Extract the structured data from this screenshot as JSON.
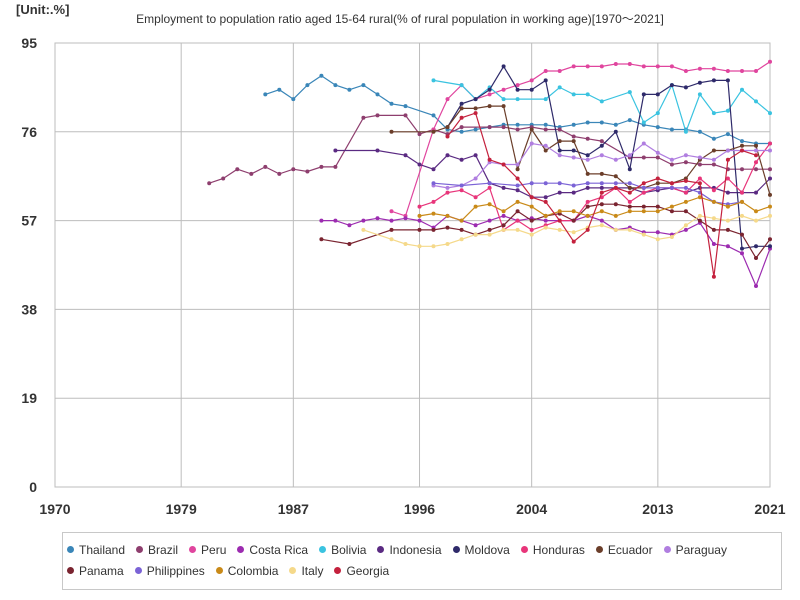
{
  "header": {
    "unit": "[Unit:.%]",
    "title": "Employment to population ratio aged 15-64 rural(% of rural population in working age)[1970～2021]"
  },
  "chart_data": {
    "type": "line",
    "title": "Employment to population ratio aged 15-64 rural(% of rural population in working age)[1970～2021]",
    "unit": "[Unit:.%]",
    "xlim": [
      1970,
      2021
    ],
    "ylim": [
      0,
      95
    ],
    "xticks": [
      1970,
      1979,
      1987,
      1996,
      2004,
      2013,
      2021
    ],
    "yticks": [
      0,
      19,
      38,
      57,
      76,
      95
    ],
    "grid": true,
    "legend_position": "bottom",
    "series": [
      {
        "name": "Thailand",
        "color": "#3a86b8",
        "x": [
          1985,
          1986,
          1987,
          1988,
          1989,
          1990,
          1991,
          1992,
          1993,
          1994,
          1995,
          1997,
          1998,
          1999,
          2000,
          2001,
          2002,
          2003,
          2004,
          2005,
          2006,
          2007,
          2008,
          2009,
          2010,
          2011,
          2012,
          2013,
          2014,
          2015,
          2016,
          2017,
          2018,
          2019,
          2020,
          2021
        ],
        "y": [
          84,
          85,
          83,
          86,
          88,
          86,
          85,
          86,
          84,
          82,
          81.5,
          79.5,
          76.5,
          76,
          76.5,
          77,
          77.5,
          77.5,
          77.5,
          77.5,
          77,
          77.5,
          78,
          78,
          77.5,
          78.5,
          77.5,
          77,
          76.5,
          76.5,
          76,
          74.5,
          75.5,
          74,
          73.5,
          73.5
        ]
      },
      {
        "name": "Brazil",
        "color": "#8e3e6e",
        "x": [
          1981,
          1982,
          1983,
          1984,
          1985,
          1986,
          1987,
          1988,
          1989,
          1990,
          1992,
          1993,
          1995,
          1996,
          1997,
          1998,
          1999,
          2001,
          2002,
          2003,
          2004,
          2005,
          2006,
          2007,
          2008,
          2009,
          2011,
          2012,
          2013,
          2014,
          2015,
          2016,
          2017,
          2018,
          2019,
          2020,
          2021
        ],
        "y": [
          65,
          66,
          68,
          67,
          68.5,
          67,
          68,
          67.5,
          68.5,
          68.5,
          79,
          79.5,
          79.5,
          75.5,
          76.5,
          75.5,
          77,
          77,
          77,
          76.5,
          77,
          76.5,
          76.5,
          75,
          74.5,
          74,
          70.5,
          70.5,
          70.5,
          69,
          69.5,
          69,
          69,
          68,
          68,
          68,
          68
        ]
      },
      {
        "name": "Peru",
        "color": "#e0459e",
        "x": [
          1994,
          1995,
          1997,
          1998,
          1999,
          2000,
          2001,
          2002,
          2003,
          2004,
          2005,
          2006,
          2007,
          2008,
          2009,
          2010,
          2011,
          2012,
          2013,
          2014,
          2015,
          2016,
          2017,
          2018,
          2019,
          2020,
          2021
        ],
        "y": [
          59,
          58,
          76.5,
          83,
          86,
          83,
          84,
          85,
          86,
          87,
          89,
          89,
          90,
          90,
          90,
          90.5,
          90.5,
          90,
          90,
          90,
          89,
          89.5,
          89.5,
          89,
          89,
          89,
          91
        ]
      },
      {
        "name": "Costa Rica",
        "color": "#9c2bb0",
        "x": [
          1989,
          1990,
          1991,
          1992,
          1993,
          1994,
          1995,
          1996,
          1997,
          1998,
          1999,
          2000,
          2001,
          2002,
          2003,
          2004,
          2005,
          2006,
          2007,
          2008,
          2009,
          2010,
          2011,
          2012,
          2013,
          2014,
          2015,
          2016,
          2017,
          2018,
          2019,
          2020,
          2021
        ],
        "y": [
          57,
          57,
          56,
          57,
          57.5,
          57,
          57.5,
          57,
          55.5,
          58,
          57,
          56,
          57,
          58,
          57,
          57.5,
          57,
          57,
          57,
          58,
          57,
          55,
          55.5,
          54.5,
          54.5,
          54,
          55,
          56.5,
          52,
          51.5,
          50,
          43,
          51
        ]
      },
      {
        "name": "Bolivia",
        "color": "#3ac3e0",
        "x": [
          1997,
          1999,
          2000,
          2001,
          2002,
          2003,
          2005,
          2006,
          2007,
          2008,
          2009,
          2011,
          2012,
          2013,
          2014,
          2015,
          2016,
          2017,
          2018,
          2019,
          2020,
          2021
        ],
        "y": [
          87,
          86,
          83,
          85.5,
          83,
          83,
          83,
          85.5,
          84,
          84,
          82.5,
          84.5,
          78,
          80,
          86,
          76,
          84,
          80,
          80.5,
          85,
          82.5,
          80
        ]
      },
      {
        "name": "Indonesia",
        "color": "#5a2a82",
        "x": [
          1990,
          1993,
          1995,
          1996,
          1997,
          1998,
          1999,
          2000,
          2001,
          2002,
          2003,
          2004,
          2005,
          2006,
          2007,
          2008,
          2009,
          2010,
          2011,
          2012,
          2013,
          2014,
          2015,
          2016,
          2017,
          2018,
          2019,
          2020,
          2021
        ],
        "y": [
          72,
          72,
          71,
          69,
          68,
          71,
          70,
          71,
          65,
          64,
          63.5,
          62,
          62,
          63,
          63,
          64,
          64,
          64,
          64,
          63,
          63.5,
          64,
          63,
          64,
          64,
          63,
          63,
          63,
          66
        ]
      },
      {
        "name": "Moldova",
        "color": "#2e2a6a",
        "x": [
          1998,
          1999,
          2000,
          2001,
          2002,
          2003,
          2004,
          2005,
          2006,
          2007,
          2008,
          2009,
          2010,
          2011,
          2012,
          2013,
          2014,
          2015,
          2016,
          2017,
          2018,
          2019,
          2020,
          2021
        ],
        "y": [
          77,
          82,
          83,
          85,
          90,
          85,
          85,
          87,
          72,
          72,
          71,
          73,
          76,
          68,
          84,
          84,
          86,
          85.5,
          86.5,
          87,
          87,
          51,
          51.5,
          51.5
        ]
      },
      {
        "name": "Honduras",
        "color": "#e8357a",
        "x": [
          1996,
          1997,
          1998,
          1999,
          2000,
          2001,
          2002,
          2003,
          2004,
          2005,
          2006,
          2007,
          2008,
          2009,
          2010,
          2011,
          2012,
          2013,
          2014,
          2015,
          2016,
          2017,
          2018,
          2019,
          2020,
          2021
        ],
        "y": [
          60,
          61,
          63,
          63.5,
          62,
          64,
          55,
          57,
          55,
          56,
          57,
          57,
          61,
          62,
          64,
          61,
          63,
          64,
          64,
          63,
          66,
          63.5,
          66,
          63,
          69.5,
          73.5
        ]
      },
      {
        "name": "Ecuador",
        "color": "#6b3e2a",
        "x": [
          1994,
          1997,
          1998,
          1999,
          2000,
          2001,
          2002,
          2003,
          2004,
          2005,
          2006,
          2007,
          2008,
          2009,
          2010,
          2011,
          2012,
          2013,
          2014,
          2015,
          2016,
          2017,
          2018,
          2019,
          2020,
          2021
        ],
        "y": [
          76,
          76,
          77,
          81,
          81,
          81.5,
          81.5,
          68,
          76.5,
          72,
          74,
          74,
          67,
          67,
          66.5,
          64,
          64,
          65,
          65,
          66,
          70,
          72,
          72,
          73,
          73,
          62.5
        ]
      },
      {
        "name": "Paraguay",
        "color": "#b07ee0",
        "x": [
          1997,
          1998,
          1999,
          2000,
          2001,
          2002,
          2003,
          2004,
          2005,
          2006,
          2007,
          2008,
          2009,
          2010,
          2011,
          2012,
          2013,
          2014,
          2015,
          2016,
          2017,
          2018,
          2019,
          2020,
          2021
        ],
        "y": [
          64.5,
          64,
          64.5,
          66,
          69.5,
          69,
          69,
          73.5,
          73,
          71,
          70.5,
          70,
          71,
          70,
          71,
          73.5,
          71.5,
          70,
          71,
          70.5,
          70,
          72,
          72,
          72,
          72
        ]
      },
      {
        "name": "Panama",
        "color": "#7a2430",
        "x": [
          1989,
          1991,
          1994,
          1996,
          1997,
          1998,
          1999,
          2000,
          2001,
          2002,
          2003,
          2004,
          2005,
          2006,
          2007,
          2008,
          2009,
          2010,
          2011,
          2012,
          2013,
          2014,
          2015,
          2016,
          2017,
          2018,
          2019,
          2020,
          2021
        ],
        "y": [
          53,
          52,
          55,
          55,
          55,
          55.5,
          55,
          54,
          55,
          56,
          59,
          57,
          58,
          58.5,
          57,
          60,
          60.5,
          60.5,
          60,
          60,
          60,
          59,
          59,
          57,
          55,
          55,
          54,
          49,
          53
        ]
      },
      {
        "name": "Philippines",
        "color": "#7b63d6",
        "x": [
          1997,
          1999,
          2001,
          2003,
          2004,
          2005,
          2006,
          2007,
          2008,
          2009,
          2010,
          2011,
          2012,
          2013,
          2014,
          2015,
          2016,
          2017,
          2018,
          2019
        ],
        "y": [
          65,
          64.5,
          65,
          64.5,
          65,
          65,
          65,
          64.5,
          65,
          65,
          65,
          65,
          64,
          64,
          64,
          64,
          63,
          61,
          60.5,
          61
        ]
      },
      {
        "name": "Colombia",
        "color": "#c98a18",
        "x": [
          1996,
          1997,
          1998,
          1999,
          2000,
          2001,
          2002,
          2003,
          2004,
          2005,
          2006,
          2007,
          2008,
          2009,
          2010,
          2011,
          2012,
          2013,
          2014,
          2015,
          2016,
          2017,
          2018,
          2019,
          2020,
          2021
        ],
        "y": [
          58,
          58.5,
          58,
          57,
          60,
          60.5,
          59,
          61,
          60,
          58,
          59,
          59,
          58,
          59,
          58,
          59,
          59,
          59,
          60,
          61,
          62,
          61,
          60,
          61,
          59,
          60
        ]
      },
      {
        "name": "Italy",
        "color": "#f5d98a",
        "x": [
          1992,
          1994,
          1995,
          1996,
          1997,
          1998,
          1999,
          2000,
          2001,
          2002,
          2003,
          2004,
          2005,
          2006,
          2007,
          2008,
          2009,
          2010,
          2011,
          2012,
          2013,
          2014,
          2015,
          2016,
          2017,
          2018,
          2019,
          2020,
          2021
        ],
        "y": [
          55,
          53,
          52,
          51.5,
          51.5,
          52,
          53,
          54,
          54,
          55,
          55,
          54,
          55.5,
          55,
          54.5,
          55.5,
          56,
          55,
          55,
          54,
          53,
          53.5,
          56,
          58,
          57.5,
          57,
          58,
          57,
          58
        ]
      },
      {
        "name": "Georgia",
        "color": "#c4213d",
        "x": [
          1998,
          1999,
          2000,
          2001,
          2002,
          2003,
          2004,
          2005,
          2006,
          2007,
          2008,
          2009,
          2010,
          2011,
          2012,
          2013,
          2014,
          2015,
          2016,
          2017,
          2018,
          2019,
          2020
        ],
        "y": [
          75,
          79,
          80,
          70,
          69,
          66,
          62,
          61,
          57,
          52.5,
          55,
          63,
          64,
          63,
          65,
          66,
          65,
          65.5,
          65,
          45,
          70,
          72,
          71
        ]
      }
    ]
  }
}
